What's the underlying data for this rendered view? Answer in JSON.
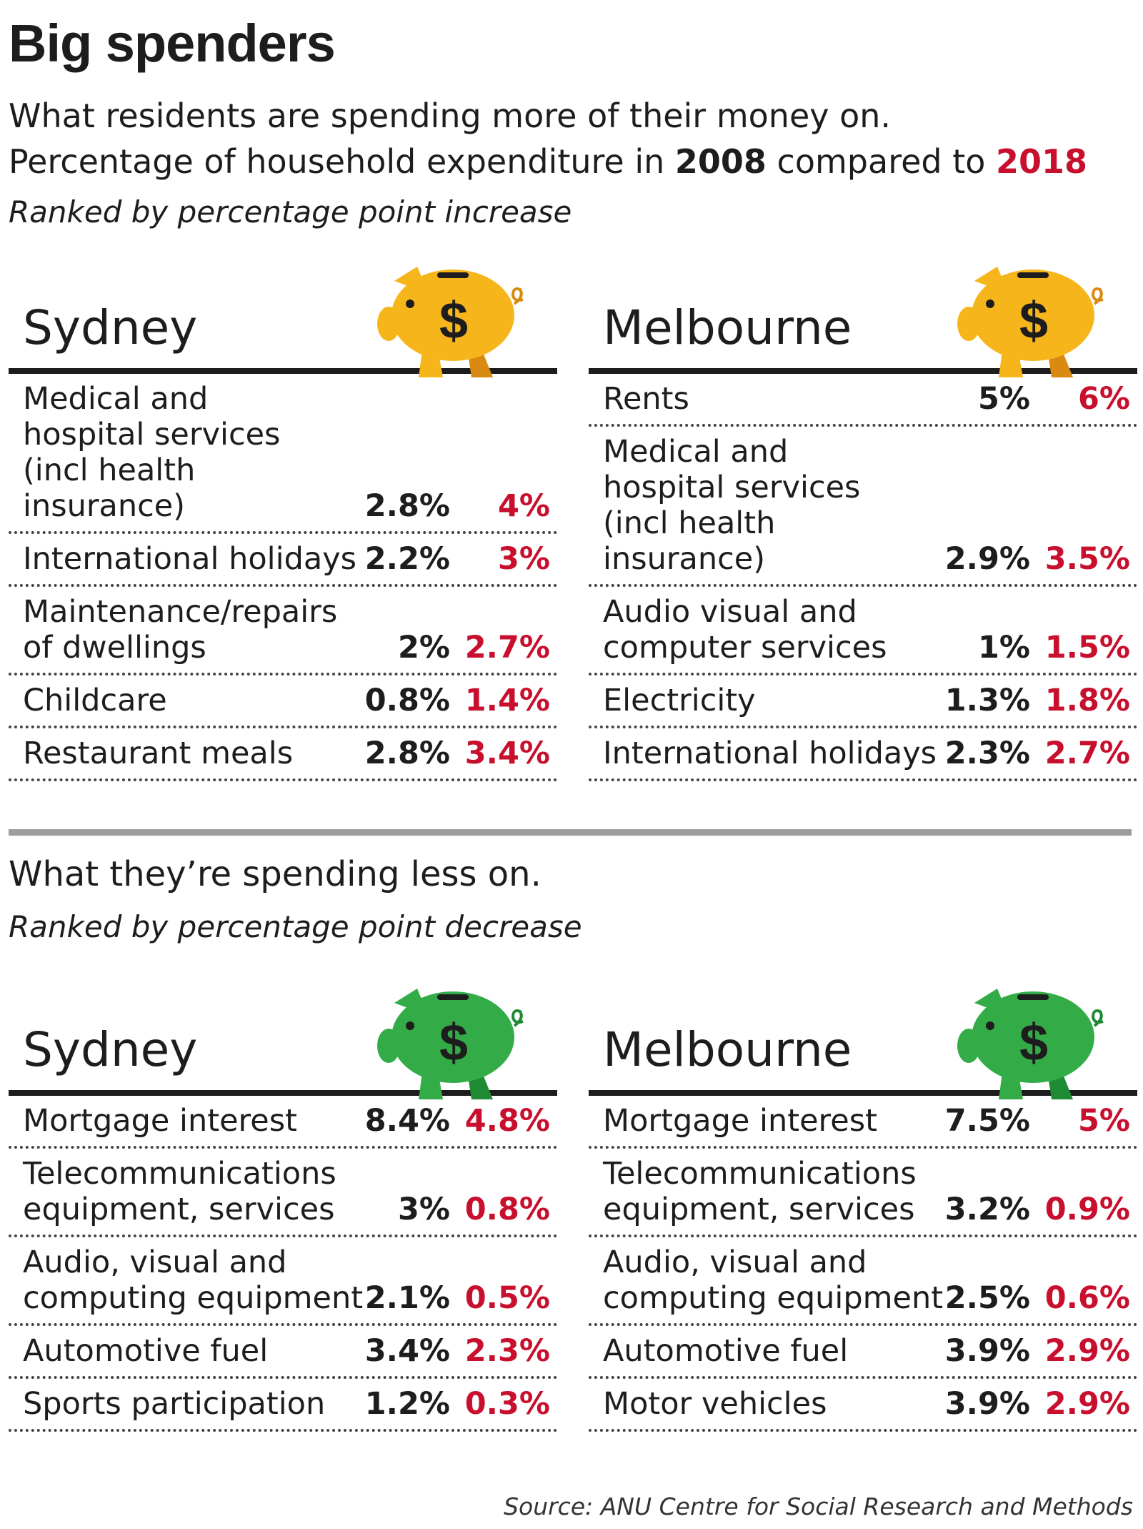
{
  "title": "Big spenders",
  "intro_line1": "What residents are spending more of their money on.",
  "intro_line2_prefix": "Percentage of household expenditure in ",
  "year1": "2008",
  "intro_line2_mid": " compared to ",
  "year2": "2018",
  "rank_increase": "Ranked by percentage point increase",
  "less_title": "What they’re spending less on.",
  "rank_decrease": "Ranked by percentage point decrease",
  "source": "Source: ANU Centre for Social Research and Methods",
  "colors": {
    "year2018": "#c8102e",
    "pig_more": "#f7b51c",
    "pig_more_dark": "#d98a10",
    "pig_less": "#33ac48",
    "pig_less_dark": "#1e8a34"
  },
  "icons": {
    "more": "piggy-bank-dollar-icon",
    "less": "piggy-bank-dollar-icon"
  },
  "chart_data": [
    {
      "type": "table",
      "section": "more",
      "city": "Sydney",
      "columns": [
        "2008",
        "2018"
      ],
      "rows": [
        {
          "label": "Medical and\nhospital services\n(incl health insurance)",
          "v2008": "2.8%",
          "v2018": "4%"
        },
        {
          "label": "International holidays",
          "v2008": "2.2%",
          "v2018": "3%"
        },
        {
          "label": "Maintenance/repairs\nof dwellings",
          "v2008": "2%",
          "v2018": "2.7%"
        },
        {
          "label": "Childcare",
          "v2008": "0.8%",
          "v2018": "1.4%"
        },
        {
          "label": "Restaurant meals",
          "v2008": "2.8%",
          "v2018": "3.4%"
        }
      ]
    },
    {
      "type": "table",
      "section": "more",
      "city": "Melbourne",
      "columns": [
        "2008",
        "2018"
      ],
      "rows": [
        {
          "label": "Rents",
          "v2008": "5%",
          "v2018": "6%"
        },
        {
          "label": "Medical and\nhospital services\n(incl health insurance)",
          "v2008": "2.9%",
          "v2018": "3.5%"
        },
        {
          "label": "Audio visual and\ncomputer services",
          "v2008": "1%",
          "v2018": "1.5%"
        },
        {
          "label": "Electricity",
          "v2008": "1.3%",
          "v2018": "1.8%"
        },
        {
          "label": "International holidays",
          "v2008": "2.3%",
          "v2018": "2.7%"
        }
      ]
    },
    {
      "type": "table",
      "section": "less",
      "city": "Sydney",
      "columns": [
        "2008",
        "2018"
      ],
      "rows": [
        {
          "label": "Mortgage interest",
          "v2008": "8.4%",
          "v2018": "4.8%"
        },
        {
          "label": "Telecommunications\nequipment, services",
          "v2008": "3%",
          "v2018": "0.8%"
        },
        {
          "label": "Audio, visual and\ncomputing equipment",
          "v2008": "2.1%",
          "v2018": "0.5%"
        },
        {
          "label": "Automotive fuel",
          "v2008": "3.4%",
          "v2018": "2.3%"
        },
        {
          "label": "Sports participation",
          "v2008": "1.2%",
          "v2018": "0.3%"
        }
      ]
    },
    {
      "type": "table",
      "section": "less",
      "city": "Melbourne",
      "columns": [
        "2008",
        "2018"
      ],
      "rows": [
        {
          "label": "Mortgage interest",
          "v2008": "7.5%",
          "v2018": "5%"
        },
        {
          "label": "Telecommunications\nequipment, services",
          "v2008": "3.2%",
          "v2018": "0.9%"
        },
        {
          "label": "Audio, visual and\ncomputing equipment",
          "v2008": "2.5%",
          "v2018": "0.6%"
        },
        {
          "label": "Automotive fuel",
          "v2008": "3.9%",
          "v2018": "2.9%"
        },
        {
          "label": "Motor vehicles",
          "v2008": "3.9%",
          "v2018": "2.9%"
        }
      ]
    }
  ]
}
